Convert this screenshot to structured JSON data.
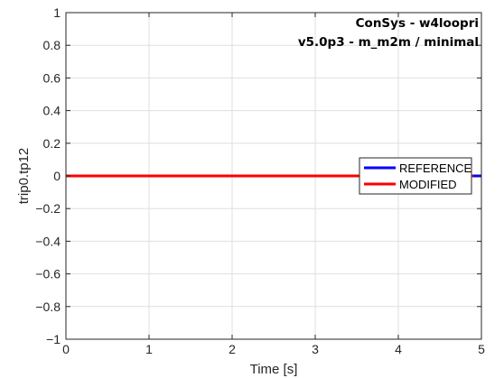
{
  "chart_data": {
    "type": "line",
    "title": "",
    "annotations": [
      "ConSys - w4loopri",
      "v5.0p3 - m_m2m / minimal"
    ],
    "xlabel": "Time [s]",
    "ylabel": "trip0.tp12",
    "xlim": [
      0,
      5
    ],
    "ylim": [
      -1,
      1
    ],
    "x_ticks": [
      0,
      1,
      2,
      3,
      4,
      5
    ],
    "y_ticks": [
      1,
      0.8,
      0.6,
      0.4,
      0.2,
      0,
      -0.2,
      -0.4,
      -0.6,
      -0.8,
      -1
    ],
    "x_tick_labels": [
      "0",
      "1",
      "2",
      "3",
      "4",
      "5"
    ],
    "y_tick_labels": [
      "1",
      "0.8",
      "0.6",
      "0.4",
      "0.2",
      "0",
      "−0.2",
      "−0.4",
      "−0.6",
      "−0.8",
      "−1"
    ],
    "grid": true,
    "legend_position": "center-right",
    "series": [
      {
        "name": "REFERENCE",
        "color": "#0000ff",
        "x": [
          0,
          5
        ],
        "y": [
          0,
          0
        ]
      },
      {
        "name": "MODIFIED",
        "color": "#ff0000",
        "x": [
          0,
          4.9
        ],
        "y": [
          0,
          0
        ]
      }
    ]
  }
}
